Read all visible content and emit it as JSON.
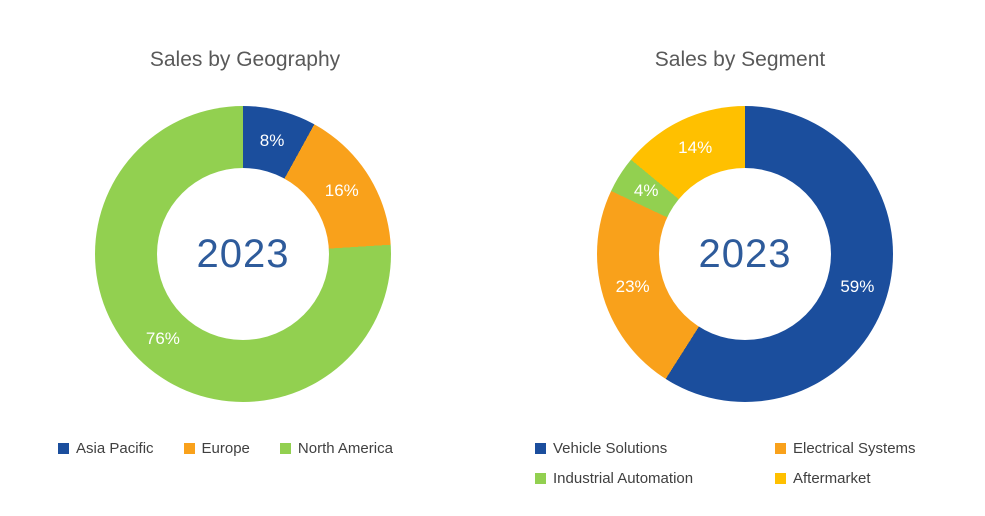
{
  "page": {
    "background": "#FFFFFF"
  },
  "styles": {
    "title_color": "#595959",
    "center_label_color": "#2E5B9B",
    "legend_text_color": "#404040",
    "slice_label_color": "#FFFFFF"
  },
  "chart_data": [
    {
      "type": "pie",
      "variant": "donut",
      "title": "Sales by Geography",
      "center_label": "2023",
      "start_angle_deg": 0,
      "direction": "clockwise",
      "legend_position": "bottom",
      "data_labels": "percent-inside",
      "slices": [
        {
          "label": "Asia Pacific",
          "value": 8,
          "color": "#1B4E9D"
        },
        {
          "label": "Europe",
          "value": 16,
          "color": "#F9A11B"
        },
        {
          "label": "North America",
          "value": 76,
          "color": "#92D050"
        }
      ]
    },
    {
      "type": "pie",
      "variant": "donut",
      "title": "Sales by Segment",
      "center_label": "2023",
      "start_angle_deg": 0,
      "direction": "clockwise",
      "legend_position": "bottom",
      "data_labels": "percent-inside",
      "slices": [
        {
          "label": "Vehicle Solutions",
          "value": 59,
          "color": "#1B4E9D"
        },
        {
          "label": "Electrical Systems",
          "value": 23,
          "color": "#F9A11B"
        },
        {
          "label": "Industrial Automation",
          "value": 4,
          "color": "#92D050"
        },
        {
          "label": "Aftermarket",
          "value": 14,
          "color": "#FFC000"
        }
      ]
    }
  ]
}
